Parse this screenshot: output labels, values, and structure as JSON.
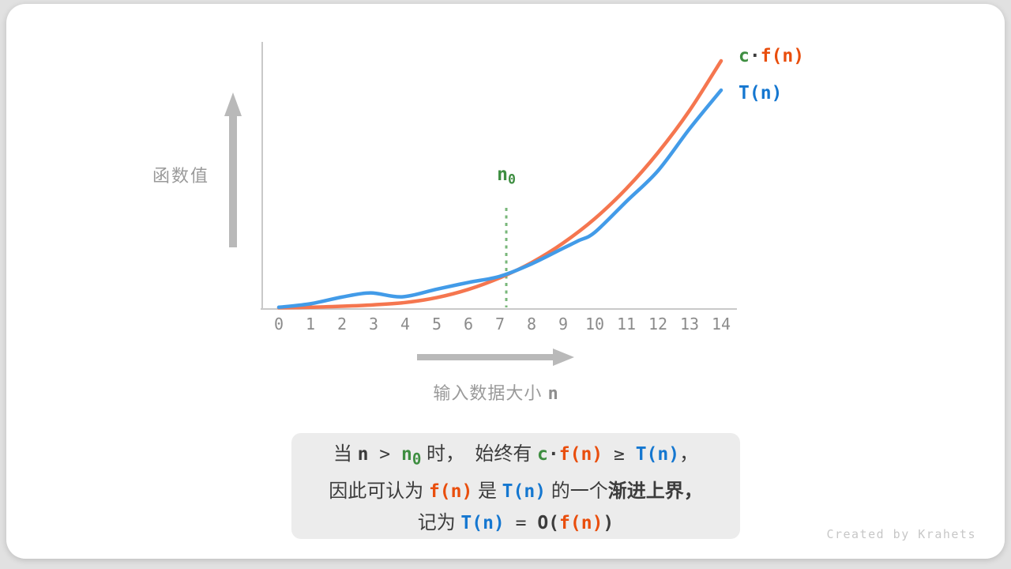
{
  "page": {
    "watermark": "Created by Krahets"
  },
  "colors": {
    "curve_cf": "#f5764f",
    "curve_tn": "#429be8",
    "text_orange": "#e94e0d",
    "text_blue": "#1577d0",
    "text_green": "#3e8e41",
    "axis_gray": "#c9c9c9",
    "arrow_gray": "#b9b9b9",
    "label_gray": "#9a9a9a",
    "note_bg": "#ececec",
    "dark_text": "#3c3c3c"
  },
  "chart": {
    "y_axis_label": "函数值",
    "x_axis_label_text": "输入数据大小 ",
    "x_axis_label_var": "n",
    "n0_label": {
      "base": "n",
      "sub": "0"
    },
    "legend": {
      "cf_c": "c",
      "cf_dot": "·",
      "cf_fn": "f(n)",
      "tn": "T(n)"
    }
  },
  "chart_data": {
    "type": "line",
    "title": "",
    "xlabel": "输入数据大小 n",
    "ylabel": "函数值",
    "x_ticks": [
      "0",
      "1",
      "2",
      "3",
      "4",
      "5",
      "6",
      "7",
      "8",
      "9",
      "10",
      "11",
      "12",
      "13",
      "14"
    ],
    "x_range": [
      0,
      14
    ],
    "ylim": [
      0,
      100
    ],
    "grid": false,
    "legend_position": "top-right",
    "n0": 7.2,
    "annotations": [
      {
        "type": "vline-dotted",
        "x": 7.2,
        "label": "n0",
        "color": "#3e8e41"
      }
    ],
    "series": [
      {
        "name": "c·f(n)",
        "color": "#f5764f",
        "points": [
          [
            0,
            0.5
          ],
          [
            1,
            0.7
          ],
          [
            2,
            1.1
          ],
          [
            3,
            1.7
          ],
          [
            4,
            2.6
          ],
          [
            5,
            4.6
          ],
          [
            6,
            7.9
          ],
          [
            7,
            12.6
          ],
          [
            8,
            18.7
          ],
          [
            9,
            26.6
          ],
          [
            10,
            36.4
          ],
          [
            11,
            48.5
          ],
          [
            12,
            63.0
          ],
          [
            13,
            80.0
          ],
          [
            14,
            100.0
          ]
        ]
      },
      {
        "name": "T(n)",
        "color": "#429be8",
        "points": [
          [
            0,
            0.7
          ],
          [
            1,
            2.1
          ],
          [
            2,
            4.8
          ],
          [
            2.9,
            6.5
          ],
          [
            3.9,
            4.9
          ],
          [
            5,
            8.0
          ],
          [
            6,
            10.7
          ],
          [
            7,
            13.2
          ],
          [
            8,
            18.2
          ],
          [
            9,
            24.5
          ],
          [
            9.5,
            27.6
          ],
          [
            10,
            30.9
          ],
          [
            11,
            43.3
          ],
          [
            12,
            55.7
          ],
          [
            13,
            72.6
          ],
          [
            14,
            88.2
          ]
        ]
      }
    ]
  },
  "note": {
    "line1": {
      "t1": "当 ",
      "n": "n",
      "gt": " > ",
      "n0_base": "n",
      "n0_sub": "0",
      "t2": " 时，  始终有 ",
      "c": "c",
      "dot": "·",
      "fn": "f(n)",
      "ge": " ≥ ",
      "tn": "T(n)",
      "t3": "，"
    },
    "line2": {
      "t1": "因此可认为 ",
      "fn": "f(n)",
      "t2": " 是 ",
      "tn": "T(n)",
      "t3": " 的一个",
      "bold": "渐进上界，"
    },
    "line3": {
      "t1": "记为 ",
      "tn": "T(n)",
      "eq": " = ",
      "o_open": "O(",
      "fn": "f(n)",
      "close": ")"
    }
  }
}
